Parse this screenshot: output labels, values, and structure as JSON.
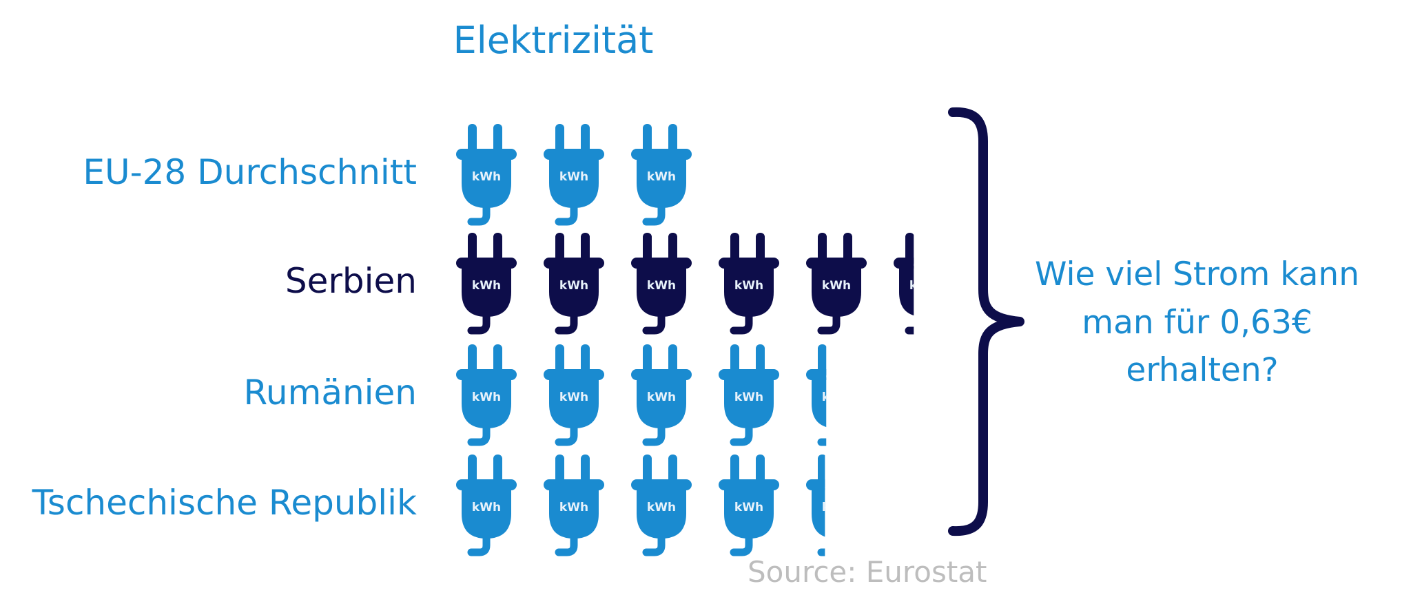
{
  "chart_data": {
    "type": "pictograph",
    "title": "Elektrizität",
    "unit_label": "kWh",
    "categories": [
      "EU-28 Durchschnitt",
      "Serbien",
      "Rumänien",
      "Tschechische Republik"
    ],
    "values": [
      3.0,
      5.35,
      4.35,
      4.33
    ],
    "colors": [
      "#1a8bd0",
      "#0d0d4a",
      "#1a8bd0",
      "#1a8bd0"
    ],
    "question": "Wie viel Strom kann man für 0,63€ erhalten?",
    "question_lines": [
      "Wie viel Strom kann",
      "man für 0,63€",
      "erhalten?"
    ],
    "source": "Source: Eurostat"
  },
  "colors": {
    "accent": "#1a8bd0",
    "dark": "#0d0d4a",
    "source": "#bdbdbd"
  },
  "icons": {
    "unit": "plug-icon",
    "group": "curly-brace-icon"
  }
}
